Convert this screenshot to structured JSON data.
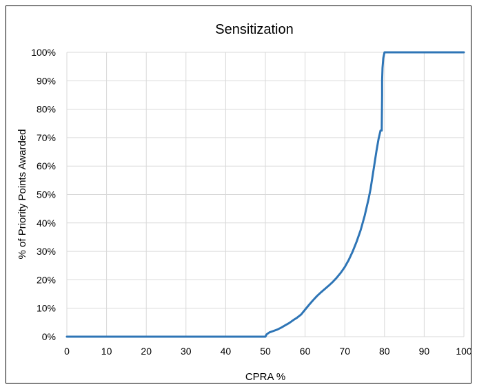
{
  "chart_data": {
    "type": "line",
    "title": "Sensitization",
    "xlabel": "CPRA %",
    "ylabel": "% of Priority Points Awarded",
    "xlim": [
      0,
      100
    ],
    "ylim": [
      0,
      100
    ],
    "x_ticks": [
      "0",
      "10",
      "20",
      "30",
      "40",
      "50",
      "60",
      "70",
      "80",
      "90",
      "100"
    ],
    "y_ticks": [
      "0%",
      "10%",
      "20%",
      "30%",
      "40%",
      "50%",
      "60%",
      "70%",
      "80%",
      "90%",
      "100%"
    ],
    "grid": true,
    "legend": "none",
    "series": [
      {
        "color": "#2e75b6",
        "x": [
          0,
          10,
          20,
          30,
          40,
          50,
          50.3,
          51,
          52,
          53,
          54,
          55,
          56,
          57,
          58,
          59,
          60,
          61,
          62,
          63,
          64,
          65,
          66,
          67,
          68,
          69,
          70,
          71,
          72,
          73,
          74,
          75,
          76,
          76.5,
          77,
          77.5,
          78,
          78.5,
          79,
          79.3,
          79.4,
          79.4,
          79.5,
          79.7,
          80,
          80.1,
          81,
          85,
          90,
          95,
          100
        ],
        "y": [
          0,
          0,
          0,
          0,
          0,
          0,
          0.8,
          1.5,
          2,
          2.5,
          3.2,
          4,
          4.8,
          5.8,
          6.7,
          7.8,
          9.5,
          11.2,
          12.8,
          14.3,
          15.6,
          16.8,
          18,
          19.3,
          20.8,
          22.5,
          24.5,
          27,
          30,
          33.5,
          37.5,
          42.5,
          48.5,
          52,
          56.5,
          61,
          65.5,
          69.5,
          72.5,
          72.5,
          85,
          90,
          94.5,
          98,
          100,
          100,
          100,
          100,
          100,
          100,
          100
        ]
      }
    ]
  }
}
